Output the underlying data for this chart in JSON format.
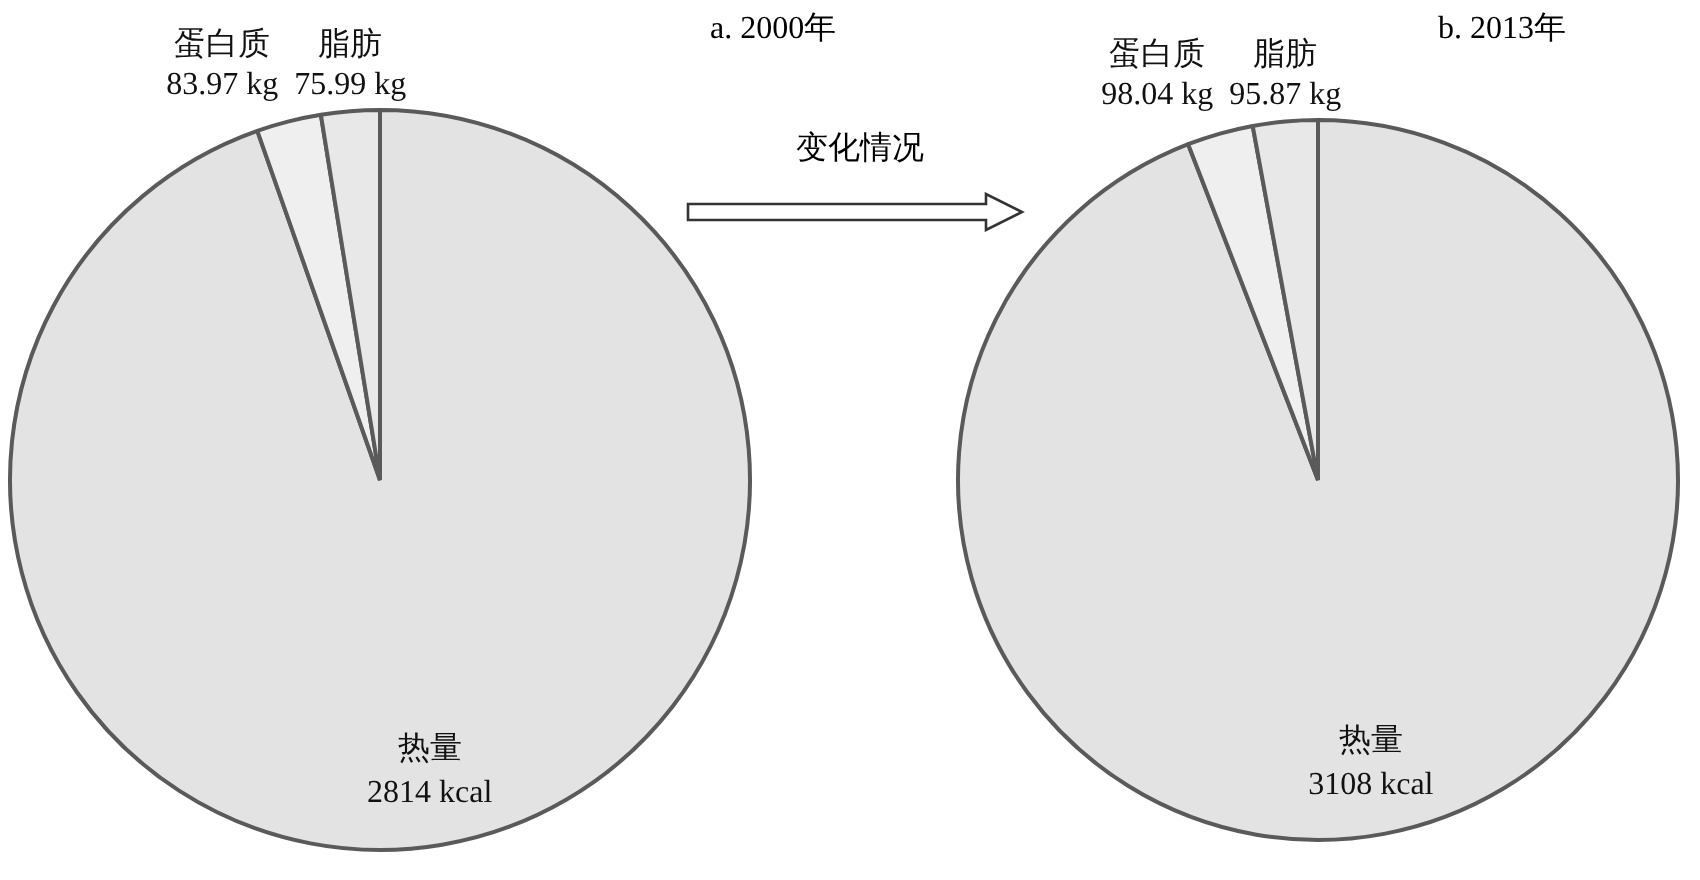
{
  "chart_data": [
    {
      "type": "pie",
      "title": "a. 2000年",
      "categories": [
        "热量",
        "蛋白质",
        "脂肪"
      ],
      "values": [
        2814,
        83.97,
        75.99
      ],
      "value_labels": [
        "2814 kcal",
        "83.97 kg",
        "75.99 kg"
      ],
      "colors": [
        "#e3e3e3",
        "#efefef",
        "#e8e8e8"
      ],
      "annotations": [
        "变化情况"
      ]
    },
    {
      "type": "pie",
      "title": "b. 2013年",
      "categories": [
        "热量",
        "蛋白质",
        "脂肪"
      ],
      "values": [
        3108,
        98.04,
        95.87
      ],
      "value_labels": [
        "3108 kcal",
        "98.04 kg",
        "95.87 kg"
      ],
      "colors": [
        "#e3e3e3",
        "#efefef",
        "#e8e8e8"
      ]
    }
  ]
}
